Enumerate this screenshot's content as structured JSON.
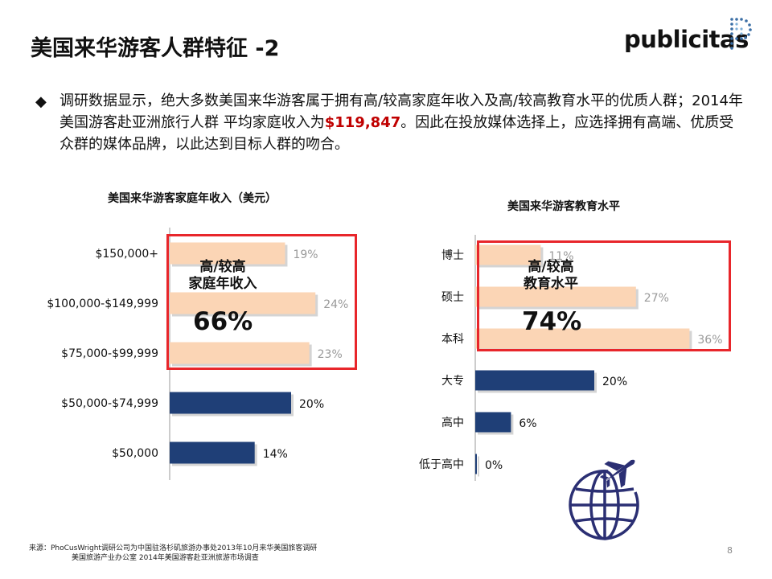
{
  "slide": {
    "title": "美国来华游客人群特征 -2",
    "logo_text": "publicitas",
    "bullet_prefix": "调研数据显示，绝大多数美国来华游客属于拥有高/较高家庭年收入及高/较高教育水平的优质人群；2014年美国游客赴亚洲旅行人群  平均家庭收入为",
    "bullet_highlight": "$119,847",
    "bullet_suffix": "。因此在投放媒体选择上，应选择拥有高端、优质受众群的媒体品牌，以此达到目标人群的吻合。",
    "highlight_color": "#c00000",
    "page_number": "8",
    "source_line1": "来源：PhoCusWright调研公司为中国驻洛杉矶旅游办事处2013年10月来华美国旅客调研",
    "source_line2": "美国旅游产业办公室 2014年美国游客赴亚洲旅游市场调查"
  },
  "colors": {
    "highlight_bar": "#fbd5b5",
    "base_bar": "#1f3f77",
    "box_border": "#e8262b"
  },
  "callouts": {
    "income": {
      "line1": "高/较高",
      "line2": "家庭年收入",
      "pct": "66%"
    },
    "education": {
      "line1": "高/较高",
      "line2": "教育水平",
      "pct": "74%"
    }
  },
  "chart_data": [
    {
      "type": "bar",
      "orientation": "horizontal",
      "title": "美国来华游客家庭年收入（美元）",
      "categories": [
        "$150,000+",
        "$100,000-$149,999",
        "$75,000-$99,999",
        "$50,000-$74,999",
        "$50,000"
      ],
      "values": [
        19,
        24,
        23,
        20,
        14
      ],
      "data_labels": [
        "19%",
        "24%",
        "23%",
        "20%",
        "14%"
      ],
      "highlighted": [
        true,
        true,
        true,
        false,
        false
      ],
      "unit": "%",
      "xlim": [
        0,
        30
      ]
    },
    {
      "type": "bar",
      "orientation": "horizontal",
      "title": "美国来华游客教育水平",
      "categories": [
        "博士",
        "硕士",
        "本科",
        "大专",
        "高中",
        "低于高中"
      ],
      "values": [
        11,
        27,
        36,
        20,
        6,
        0
      ],
      "data_labels": [
        "11%",
        "27%",
        "36%",
        "20%",
        "6%",
        "0%"
      ],
      "highlighted": [
        true,
        true,
        true,
        false,
        false,
        false
      ],
      "unit": "%",
      "xlim": [
        0,
        40
      ]
    }
  ]
}
